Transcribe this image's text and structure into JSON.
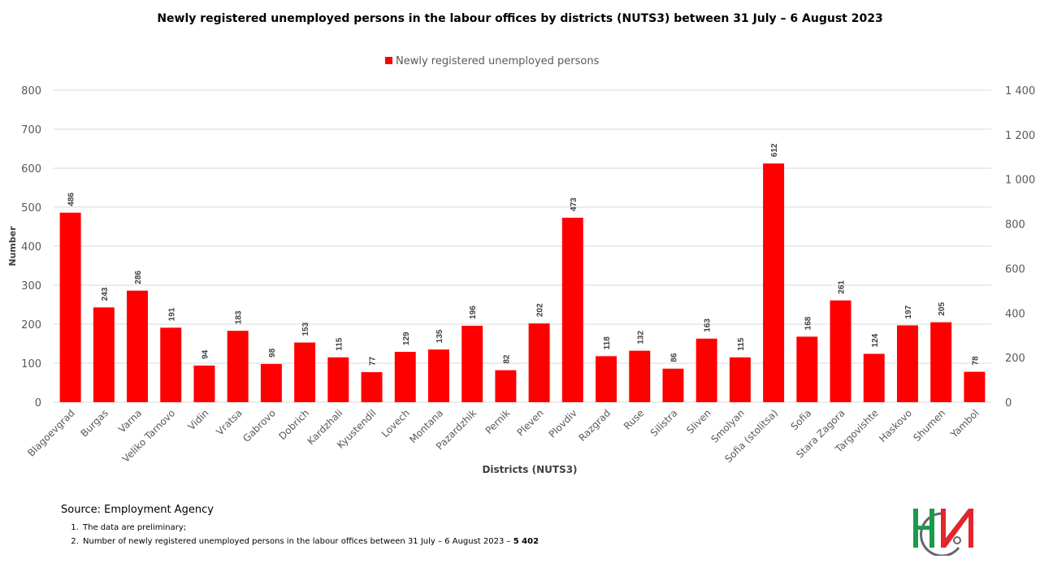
{
  "chart_data": {
    "type": "bar",
    "title": "Newly registered unemployed persons in the labour offices by districts (NUTS3) between 31 July – 6 August 2023",
    "xlabel": "Districts (NUTS3)",
    "ylabel": "Number",
    "legend": {
      "position": "top",
      "entries": [
        "Newly registered unemployed persons"
      ]
    },
    "grid": true,
    "ylim": [
      0,
      800
    ],
    "yticks": [
      "0",
      "100",
      "200",
      "300",
      "400",
      "500",
      "600",
      "700",
      "800"
    ],
    "y2lim": [
      0,
      1400
    ],
    "y2ticks": [
      "0",
      "200",
      "400",
      "600",
      "800",
      "1 000",
      "1 200",
      "1 400"
    ],
    "categories": [
      "Blagoevgrad",
      "Burgas",
      "Varna",
      "Veliko Tarnovo",
      "Vidin",
      "Vratsa",
      "Gabrovo",
      "Dobrich",
      "Kardzhali",
      "Kyustendil",
      "Lovech",
      "Montana",
      "Pazardzhik",
      "Pernik",
      "Pleven",
      "Plovdiv",
      "Razgrad",
      "Ruse",
      "Silistra",
      "Sliven",
      "Smolyan",
      "Sofia (stolitsa)",
      "Sofia",
      "Stara Zagora",
      "Targovishte",
      "Haskovo",
      "Shumen",
      "Yambol"
    ],
    "series": [
      {
        "name": "Newly registered unemployed persons",
        "color": "#ff0000",
        "values": [
          486,
          243,
          286,
          191,
          94,
          183,
          98,
          153,
          115,
          77,
          129,
          135,
          196,
          82,
          202,
          473,
          118,
          132,
          86,
          163,
          115,
          612,
          168,
          261,
          124,
          197,
          205,
          78
        ]
      }
    ]
  },
  "footer": {
    "source": "Source: Employment  Agency",
    "notes": [
      "The data are preliminary;",
      "Number  of newly registered unemployed persons in the labour offices between 31 July – 6 August 2023 – "
    ],
    "total": "5 402"
  },
  "logo": {
    "name": "NSI",
    "colors": {
      "green": "#1a9b4b",
      "red": "#e3262c",
      "gray": "#666666"
    }
  }
}
